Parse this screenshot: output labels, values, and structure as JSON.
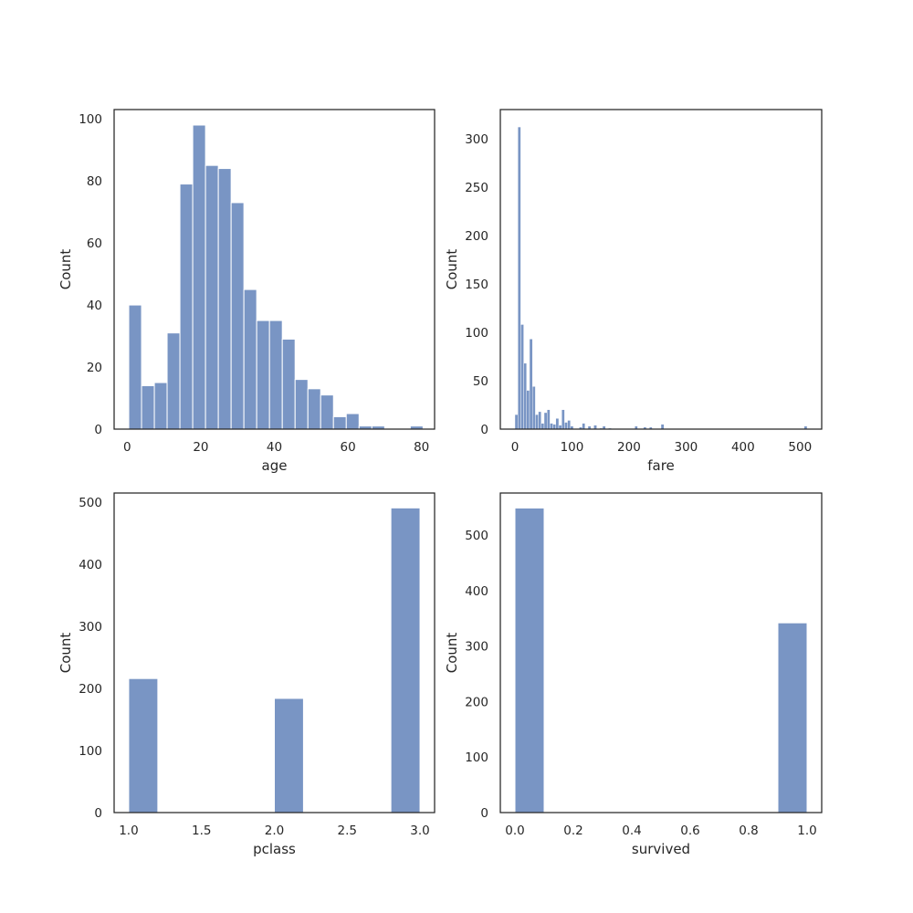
{
  "style": {
    "bar_fill": "#4c72b0",
    "bar_opacity": 0.75,
    "bar_edge": "#ffffff",
    "frame": "#262626",
    "background": "#ffffff"
  },
  "chart_data": [
    {
      "type": "bar",
      "chart_kind": "histogram",
      "xlabel": "age",
      "ylabel": "Count",
      "xlim": [
        -3.558,
        83.558
      ],
      "ylim": [
        0,
        103
      ],
      "xticks": [
        0,
        20,
        40,
        60,
        80
      ],
      "yticks": [
        0,
        20,
        40,
        60,
        80,
        100
      ],
      "tick_labels_x": [
        "0",
        "20",
        "40",
        "60",
        "80"
      ],
      "tick_labels_y": [
        "0",
        "20",
        "40",
        "60",
        "80",
        "100"
      ],
      "bin_edges": [
        0.42,
        3.9,
        7.38,
        10.85,
        14.33,
        17.81,
        21.29,
        24.77,
        28.25,
        31.72,
        35.2,
        38.68,
        42.16,
        45.64,
        49.12,
        52.59,
        56.07,
        59.55,
        63.03,
        66.51,
        69.99,
        73.46,
        76.94,
        80.42
      ],
      "values": [
        40,
        14,
        15,
        31,
        79,
        98,
        85,
        84,
        73,
        45,
        35,
        35,
        29,
        16,
        13,
        11,
        4,
        5,
        1,
        1,
        0,
        0,
        1
      ],
      "grid": false
    },
    {
      "type": "bar",
      "chart_kind": "histogram",
      "xlabel": "fare",
      "ylabel": "Count",
      "xlim": [
        -25.6,
        537.9
      ],
      "ylim": [
        0,
        330
      ],
      "xticks": [
        0,
        100,
        200,
        300,
        400,
        500
      ],
      "yticks": [
        0,
        50,
        100,
        150,
        200,
        250,
        300
      ],
      "tick_labels_x": [
        "0",
        "100",
        "200",
        "300",
        "400",
        "500"
      ],
      "tick_labels_y": [
        "0",
        "50",
        "100",
        "150",
        "200",
        "250",
        "300"
      ],
      "bin_start": 0,
      "bin_width": 5.123,
      "values": [
        15,
        312,
        108,
        68,
        40,
        93,
        44,
        15,
        18,
        6,
        17,
        20,
        6,
        5,
        11,
        4,
        20,
        7,
        9,
        3,
        0,
        0,
        2,
        6,
        0,
        3,
        0,
        4,
        0,
        1,
        3,
        0,
        1,
        0,
        0,
        0,
        0,
        0,
        0,
        0,
        0,
        3,
        0,
        0,
        2,
        0,
        2,
        0,
        0,
        0,
        5,
        0,
        0,
        0,
        0,
        0,
        0,
        0,
        0,
        0,
        0,
        0,
        0,
        0,
        0,
        0,
        0,
        0,
        0,
        0,
        0,
        0,
        0,
        0,
        0,
        0,
        0,
        0,
        0,
        0,
        0,
        0,
        0,
        0,
        0,
        0,
        0,
        0,
        0,
        0,
        0,
        0,
        0,
        0,
        0,
        0,
        0,
        0,
        0,
        3
      ],
      "grid": false
    },
    {
      "type": "bar",
      "chart_kind": "histogram",
      "xlabel": "pclass",
      "ylabel": "Count",
      "xlim": [
        0.9,
        3.1
      ],
      "ylim": [
        0,
        515
      ],
      "xticks": [
        1.0,
        1.5,
        2.0,
        2.5,
        3.0
      ],
      "yticks": [
        0,
        100,
        200,
        300,
        400,
        500
      ],
      "tick_labels_x": [
        "1.0",
        "1.5",
        "2.0",
        "2.5",
        "3.0"
      ],
      "tick_labels_y": [
        "0",
        "100",
        "200",
        "300",
        "400",
        "500"
      ],
      "bin_edges": [
        1.0,
        1.2,
        1.4,
        1.6,
        1.8,
        2.0,
        2.2,
        2.4,
        2.6,
        2.8,
        3.0
      ],
      "values": [
        216,
        0,
        0,
        0,
        0,
        184,
        0,
        0,
        0,
        491
      ],
      "grid": false
    },
    {
      "type": "bar",
      "chart_kind": "histogram",
      "xlabel": "survived",
      "ylabel": "Count",
      "xlim": [
        -0.05,
        1.05
      ],
      "ylim": [
        0,
        576
      ],
      "xticks": [
        0.0,
        0.2,
        0.4,
        0.6,
        0.8,
        1.0
      ],
      "yticks": [
        0,
        100,
        200,
        300,
        400,
        500
      ],
      "tick_labels_x": [
        "0.0",
        "0.2",
        "0.4",
        "0.6",
        "0.8",
        "1.0"
      ],
      "tick_labels_y": [
        "0",
        "100",
        "200",
        "300",
        "400",
        "500"
      ],
      "bin_edges": [
        0.0,
        0.1,
        0.2,
        0.3,
        0.4,
        0.5,
        0.6,
        0.7,
        0.8,
        0.9,
        1.0
      ],
      "values": [
        549,
        0,
        0,
        0,
        0,
        0,
        0,
        0,
        0,
        342
      ],
      "grid": false
    }
  ]
}
